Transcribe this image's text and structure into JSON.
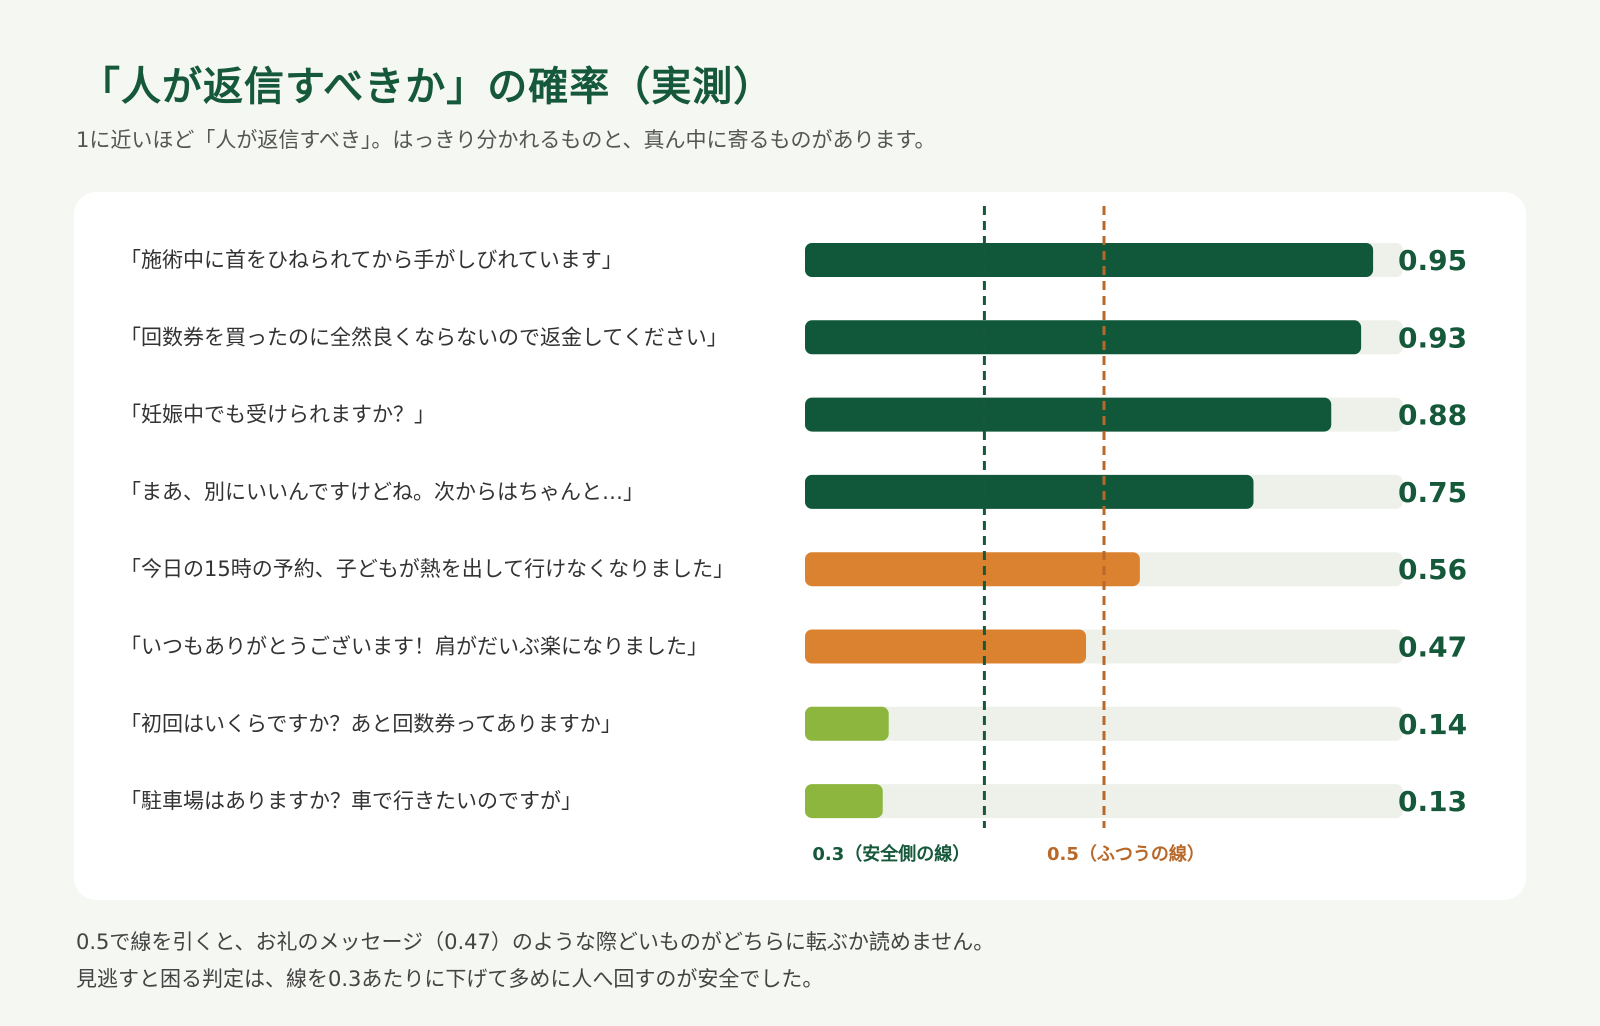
{
  "title": "「人が返信すべきか」の確率（実測）",
  "subtitle": "1に近いほど「人が返信すべき」。はっきり分かれるものと、真ん中に寄るものがあります。",
  "colors": {
    "high": "#11583a",
    "mid": "#db8230",
    "low": "#8db63f",
    "track": "#eef1ea",
    "safe_line": "#15583a",
    "normal_line": "#b8692a",
    "value_text": "#15583a"
  },
  "chart_data": {
    "type": "bar",
    "orientation": "horizontal",
    "title": "「人が返信すべきか」の確率（実測）",
    "xlim": [
      0,
      1
    ],
    "grid": false,
    "categories": [
      "「施術中に首をひねられてから手がしびれています」",
      "「回数券を買ったのに全然良くならないので返金してください」",
      "「妊娠中でも受けられますか？」",
      "「まあ、別にいいんですけどね。次からはちゃんと…」",
      "「今日の15時の予約、子どもが熱を出して行けなくなりました」",
      "「いつもありがとうございます！肩がだいぶ楽になりました」",
      "「初回はいくらですか？あと回数券ってありますか」",
      "「駐車場はありますか？車で行きたいのですが」"
    ],
    "values": [
      0.95,
      0.93,
      0.88,
      0.75,
      0.56,
      0.47,
      0.14,
      0.13
    ],
    "value_labels": [
      "0.95",
      "0.93",
      "0.88",
      "0.75",
      "0.56",
      "0.47",
      "0.14",
      "0.13"
    ],
    "bar_levels": [
      "high",
      "high",
      "high",
      "high",
      "mid",
      "mid",
      "low",
      "low"
    ],
    "reference_lines": [
      {
        "value": 0.3,
        "label": "0.3（安全側の線）",
        "color_key": "safe_line",
        "style": "dashed"
      },
      {
        "value": 0.5,
        "label": "0.5（ふつうの線）",
        "color_key": "normal_line",
        "style": "dashed"
      }
    ]
  },
  "footnote": {
    "line1": "0.5で線を引くと、お礼のメッセージ（0.47）のような際どいものがどちらに転ぶか読めません。",
    "line2": "見逃すと困る判定は、線を0.3あたりに下げて多めに人へ回すのが安全でした。"
  }
}
